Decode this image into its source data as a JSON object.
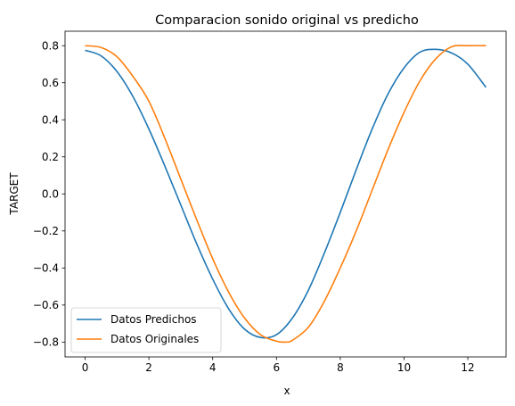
{
  "chart_data": {
    "type": "line",
    "title": "Comparacion sonido original vs predicho",
    "xlabel": "x",
    "ylabel": "TARGET",
    "xlim": [
      -0.63,
      13.2
    ],
    "ylim": [
      -0.88,
      0.878
    ],
    "x_ticks": [
      0,
      2,
      4,
      6,
      8,
      10,
      12
    ],
    "y_ticks": [
      -0.8,
      -0.6,
      -0.4,
      -0.2,
      0.0,
      0.2,
      0.4,
      0.6,
      0.8
    ],
    "x_tick_labels": [
      "0",
      "2",
      "4",
      "6",
      "8",
      "10",
      "12"
    ],
    "y_tick_labels": [
      "−0.8",
      "−0.6",
      "−0.4",
      "−0.2",
      "0.0",
      "0.2",
      "0.4",
      "0.6",
      "0.8"
    ],
    "grid": false,
    "legend_position": "lower-left",
    "series": [
      {
        "name": "Datos Predichos",
        "color": "#1f77b4",
        "x": [
          0,
          0.5,
          1,
          1.5,
          2,
          2.5,
          3,
          3.5,
          4,
          4.5,
          5,
          5.5,
          6,
          6.5,
          7,
          7.5,
          8,
          8.5,
          9,
          9.5,
          10,
          10.5,
          11,
          11.5,
          12,
          12.57
        ],
        "y": [
          0.775,
          0.745,
          0.66,
          0.525,
          0.35,
          0.15,
          -0.06,
          -0.27,
          -0.46,
          -0.62,
          -0.73,
          -0.775,
          -0.76,
          -0.67,
          -0.52,
          -0.32,
          -0.1,
          0.13,
          0.35,
          0.54,
          0.68,
          0.765,
          0.78,
          0.76,
          0.7,
          0.575
        ]
      },
      {
        "name": "Datos Originales",
        "color": "#ff7f0e",
        "x": [
          0,
          0.5,
          1,
          1.5,
          2,
          2.5,
          3,
          3.5,
          4,
          4.5,
          5,
          5.5,
          6,
          6.28,
          6.5,
          7,
          7.5,
          8,
          8.5,
          9,
          9.5,
          10,
          10.5,
          11,
          11.5,
          12,
          12.57
        ],
        "y": [
          0.8,
          0.79,
          0.74,
          0.634,
          0.5,
          0.3,
          0.08,
          -0.14,
          -0.35,
          -0.53,
          -0.67,
          -0.76,
          -0.795,
          -0.8,
          -0.79,
          -0.72,
          -0.58,
          -0.4,
          -0.2,
          0.02,
          0.24,
          0.44,
          0.61,
          0.73,
          0.795,
          0.8,
          0.8
        ]
      }
    ]
  }
}
